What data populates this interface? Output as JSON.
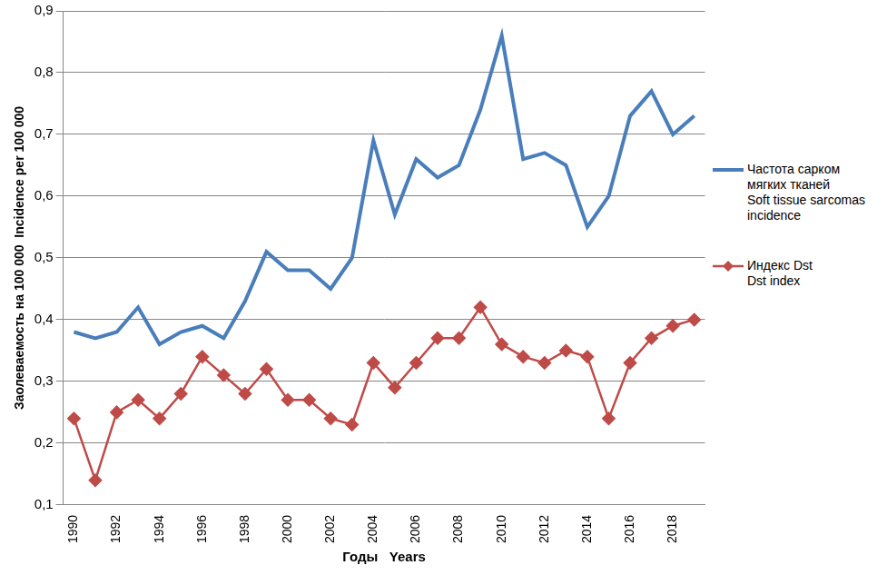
{
  "chart_data": {
    "type": "line",
    "x_label": "Годы   Years",
    "y_label": "Заолеваемость на 100 000  Incidence per 100 000",
    "categories": [
      "1990",
      null,
      "1992",
      null,
      "1994",
      null,
      "1996",
      null,
      "1998",
      null,
      "2000",
      null,
      "2002",
      null,
      "2004",
      null,
      "2006",
      null,
      "2008",
      null,
      "2010",
      null,
      "2012",
      null,
      "2014",
      null,
      "2016",
      null,
      "2018",
      null
    ],
    "series": [
      {
        "name": "Частота сарком\nмягких тканей\nSoft tissue sarcomas\nincidence",
        "color": "#4a7ebb",
        "marker": "none",
        "line_style": "solid",
        "values": [
          0.38,
          0.37,
          0.38,
          0.42,
          0.36,
          0.38,
          0.39,
          0.37,
          0.43,
          0.51,
          0.48,
          0.48,
          0.45,
          0.5,
          0.69,
          0.57,
          0.66,
          0.63,
          0.65,
          0.74,
          0.86,
          0.66,
          0.67,
          0.65,
          0.55,
          0.6,
          0.73,
          0.77,
          0.7,
          0.73
        ]
      },
      {
        "name": "Индекс Dst\nDst index",
        "color": "#be4b48",
        "marker": "diamond",
        "line_style": "solid",
        "values": [
          0.24,
          0.14,
          0.25,
          0.27,
          0.24,
          0.28,
          0.34,
          0.31,
          0.28,
          0.32,
          0.27,
          0.27,
          0.24,
          0.23,
          0.33,
          0.29,
          0.33,
          0.37,
          0.37,
          0.42,
          0.36,
          0.34,
          0.33,
          0.35,
          0.34,
          0.24,
          0.33,
          0.37,
          0.39,
          0.4
        ]
      }
    ],
    "ylim": [
      0.1,
      0.9
    ],
    "yticks": [
      {
        "value": 0.1,
        "label": "0,1"
      },
      {
        "value": 0.2,
        "label": "0,2"
      },
      {
        "value": 0.3,
        "label": "0,3"
      },
      {
        "value": 0.4,
        "label": "0,4"
      },
      {
        "value": 0.5,
        "label": "0,5"
      },
      {
        "value": 0.6,
        "label": "0,6"
      },
      {
        "value": 0.7,
        "label": "0,7"
      },
      {
        "value": 0.8,
        "label": "0,8"
      },
      {
        "value": 0.9,
        "label": "0,9"
      }
    ],
    "grid": "y",
    "legend": "right"
  }
}
